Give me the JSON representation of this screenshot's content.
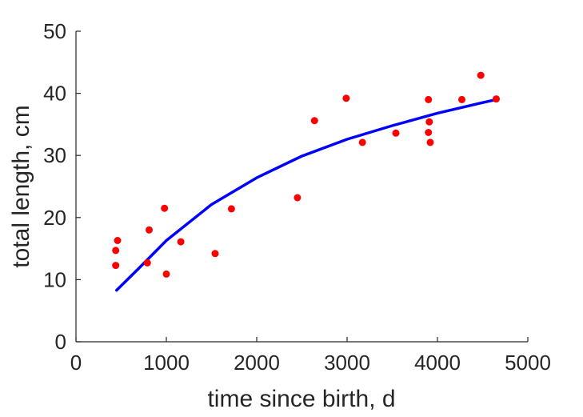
{
  "chart_data": {
    "type": "scatter",
    "xlabel": "time since birth, d",
    "ylabel": "total length, cm",
    "xlim": [
      0,
      5000
    ],
    "ylim": [
      0,
      50
    ],
    "xticks": [
      0,
      1000,
      2000,
      3000,
      4000,
      5000
    ],
    "yticks": [
      0,
      10,
      20,
      30,
      40,
      50
    ],
    "grid": false,
    "box": false,
    "series": [
      {
        "kind": "points",
        "color": "#ff0000",
        "x": [
          460,
          440,
          440,
          810,
          790,
          980,
          1000,
          1160,
          1540,
          1720,
          2450,
          2640,
          2990,
          3170,
          3540,
          3900,
          3910,
          3900,
          3920,
          4270,
          4480,
          4650
        ],
        "y": [
          16.3,
          14.7,
          12.3,
          18.0,
          12.7,
          21.5,
          10.9,
          16.1,
          14.2,
          21.4,
          23.2,
          35.6,
          39.2,
          32.1,
          33.6,
          39.0,
          35.4,
          33.7,
          32.1,
          39.0,
          42.9,
          39.1
        ]
      },
      {
        "kind": "curve",
        "color": "#0000ff",
        "x": [
          450,
          700,
          1000,
          1500,
          2000,
          2500,
          3000,
          3500,
          4000,
          4500,
          4650
        ],
        "y": [
          8.3,
          11.9,
          16.3,
          22.1,
          26.4,
          29.9,
          32.6,
          34.8,
          36.8,
          38.5,
          39.0
        ]
      }
    ]
  }
}
